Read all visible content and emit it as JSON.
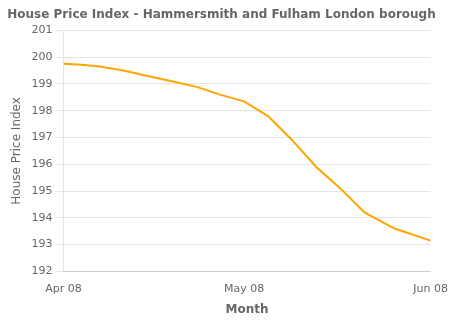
{
  "chart_data": {
    "type": "line",
    "title": "House Price Index - Hammersmith and Fulham London borough",
    "xlabel": "Month",
    "ylabel": "House Price Index",
    "x": [
      0,
      3,
      6,
      10,
      14,
      18,
      22,
      26,
      30,
      34,
      38,
      42,
      46,
      50,
      55,
      61
    ],
    "values": [
      199.75,
      199.72,
      199.65,
      199.5,
      199.3,
      199.1,
      198.9,
      198.6,
      198.35,
      197.8,
      196.9,
      195.9,
      195.1,
      194.2,
      193.6,
      193.15
    ],
    "color": "#FFA500",
    "xlim": [
      0,
      61
    ],
    "xticks": [
      {
        "value": 0,
        "label": "Apr 08"
      },
      {
        "value": 30,
        "label": "May 08"
      },
      {
        "value": 61,
        "label": "Jun 08"
      }
    ],
    "ylim": [
      192,
      201
    ],
    "yticks": [
      192,
      193,
      194,
      195,
      196,
      197,
      198,
      199,
      200,
      201
    ],
    "grid": "y"
  }
}
